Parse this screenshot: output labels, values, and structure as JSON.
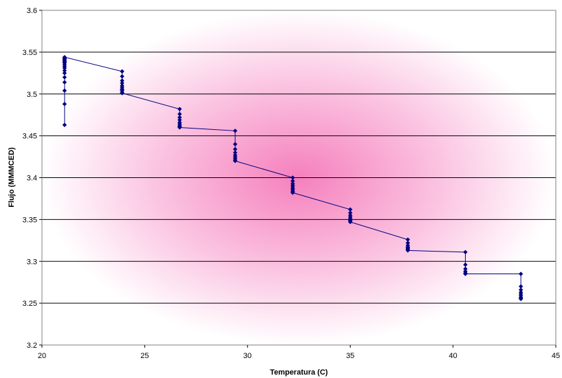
{
  "chart_data": {
    "type": "line",
    "title": "",
    "xlabel": "Temperatura (C)",
    "ylabel": "Flujo (MMMCED)",
    "xlim": [
      20,
      45
    ],
    "ylim": [
      3.2,
      3.6
    ],
    "xticks": [
      20,
      25,
      30,
      35,
      40,
      45
    ],
    "yticks": [
      3.2,
      3.25,
      3.3,
      3.35,
      3.4,
      3.45,
      3.5,
      3.55,
      3.6
    ],
    "xtick_labels": [
      "20",
      "25",
      "30",
      "35",
      "40",
      "45"
    ],
    "ytick_labels": [
      "3.2",
      "3.25",
      "3.3",
      "3.35",
      "3.4",
      "3.45",
      "3.5",
      "3.55",
      "3.6"
    ],
    "grid": "horizontal",
    "legend": "none",
    "series": [
      {
        "marker": "diamond",
        "color": "#000080",
        "x": [
          21.1,
          21.1,
          21.1,
          21.1,
          21.1,
          21.1,
          21.1,
          21.1,
          21.1,
          21.1,
          21.1,
          21.1,
          21.1,
          21.1,
          21.1,
          21.1,
          21.1,
          21.1,
          21.1,
          23.9,
          23.9,
          23.9,
          23.9,
          23.9,
          23.9,
          23.9,
          23.9,
          23.9,
          23.9,
          23.9,
          26.7,
          26.7,
          26.7,
          26.7,
          26.7,
          26.7,
          26.7,
          26.7,
          26.7,
          29.4,
          29.4,
          29.4,
          29.4,
          29.4,
          29.4,
          29.4,
          29.4,
          29.4,
          32.2,
          32.2,
          32.2,
          32.2,
          32.2,
          32.2,
          32.2,
          32.2,
          32.2,
          32.2,
          35.0,
          35.0,
          35.0,
          35.0,
          35.0,
          35.0,
          35.0,
          35.0,
          37.8,
          37.8,
          37.8,
          37.8,
          37.8,
          37.8,
          37.8,
          37.8,
          40.6,
          40.6,
          40.6,
          40.6,
          40.6,
          40.6,
          43.3,
          43.3,
          43.3,
          43.3,
          43.3,
          43.3,
          43.3,
          43.3,
          43.3
        ],
        "y": [
          3.463,
          3.488,
          3.504,
          3.514,
          3.52,
          3.525,
          3.528,
          3.531,
          3.533,
          3.535,
          3.537,
          3.538,
          3.539,
          3.54,
          3.541,
          3.542,
          3.543,
          3.543,
          3.544,
          3.527,
          3.521,
          3.516,
          3.513,
          3.51,
          3.508,
          3.506,
          3.505,
          3.504,
          3.502,
          3.501,
          3.482,
          3.476,
          3.472,
          3.469,
          3.466,
          3.464,
          3.462,
          3.461,
          3.46,
          3.456,
          3.44,
          3.434,
          3.43,
          3.427,
          3.425,
          3.423,
          3.421,
          3.42,
          3.4,
          3.396,
          3.393,
          3.391,
          3.389,
          3.387,
          3.386,
          3.384,
          3.383,
          3.382,
          3.362,
          3.358,
          3.355,
          3.353,
          3.351,
          3.349,
          3.348,
          3.347,
          3.326,
          3.322,
          3.319,
          3.317,
          3.316,
          3.315,
          3.314,
          3.313,
          3.311,
          3.296,
          3.291,
          3.288,
          3.286,
          3.285,
          3.285,
          3.27,
          3.266,
          3.263,
          3.261,
          3.259,
          3.257,
          3.256,
          3.255
        ]
      }
    ]
  }
}
